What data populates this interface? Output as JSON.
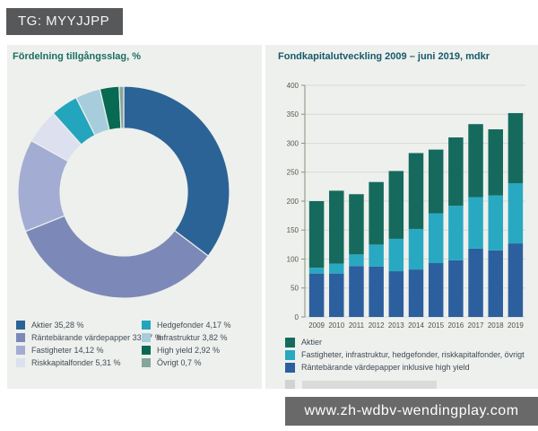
{
  "tag": {
    "label": "TG: MYYJJPP"
  },
  "watermark": {
    "text": "www.zh-wdbv-wendingplay.com"
  },
  "donut_panel": {
    "title": "Fördelning tillgångsslag, %",
    "legend_columns": [
      [
        {
          "text": "Aktier 35,28 %",
          "color": "#2b6396"
        },
        {
          "text": "Räntebärande värdepapper 33,67 %",
          "color": "#7c89b8"
        },
        {
          "text": "Fastigheter 14,12 %",
          "color": "#a3add3"
        },
        {
          "text": "Riskkapitalfonder 5,31 %",
          "color": "#dde0ee"
        }
      ],
      [
        {
          "text": "Hedgefonder 4,17 %",
          "color": "#23a5bd"
        },
        {
          "text": "Infrastruktur 3,82 %",
          "color": "#a7cddd"
        },
        {
          "text": "High yield 2,92 %",
          "color": "#086a52"
        },
        {
          "text": "Övrigt 0,7 %",
          "color": "#84a69b"
        }
      ]
    ]
  },
  "bar_panel": {
    "title": "Fondkapitalutveckling 2009 – juni 2019, mdkr",
    "legend": [
      {
        "text": "Aktier",
        "color": "#156a5d"
      },
      {
        "text": "Fastigheter, infrastruktur, hedgefonder, riskkapitalfonder, övrigt",
        "color": "#29a8c2"
      },
      {
        "text": "Räntebärande värdepapper inklusive high yield",
        "color": "#2c5f9e"
      }
    ]
  },
  "chart_data": [
    {
      "type": "pie",
      "donut": true,
      "title": "Fördelning tillgångsslag, %",
      "labels": [
        "Aktier",
        "Räntebärande värdepapper",
        "Fastigheter",
        "Riskkapitalfonder",
        "Hedgefonder",
        "Infrastruktur",
        "High yield",
        "Övrigt"
      ],
      "values": [
        35.28,
        33.67,
        14.12,
        5.31,
        4.17,
        3.82,
        2.92,
        0.7
      ],
      "colors": [
        "#2b6396",
        "#7c89b8",
        "#a3add3",
        "#dde0ee",
        "#23a5bd",
        "#a7cddd",
        "#086a52",
        "#84a69b"
      ],
      "start_angle_deg": 0,
      "direction": "clockwise",
      "legend_position": "bottom"
    },
    {
      "type": "bar",
      "stacked": true,
      "title": "Fondkapitalutveckling 2009 – juni 2019, mdkr",
      "categories": [
        "2009",
        "2010",
        "2011",
        "2012",
        "2013",
        "2014",
        "2015",
        "2016",
        "2017",
        "2018",
        "2019"
      ],
      "series": [
        {
          "name": "Räntebärande värdepapper inklusive high yield",
          "color": "#2c5f9e",
          "values": [
            75,
            75,
            88,
            87,
            79,
            82,
            93,
            98,
            118,
            115,
            127
          ]
        },
        {
          "name": "Fastigheter, infrastruktur, hedgefonder, riskkapitalfonder, övrigt",
          "color": "#29a8c2",
          "values": [
            10,
            17,
            20,
            38,
            56,
            70,
            86,
            94,
            89,
            95,
            104
          ]
        },
        {
          "name": "Aktier",
          "color": "#156a5d",
          "values": [
            115,
            126,
            104,
            108,
            117,
            131,
            110,
            118,
            126,
            114,
            121
          ]
        }
      ],
      "totals": [
        200,
        218,
        212,
        233,
        252,
        283,
        289,
        310,
        333,
        324,
        352
      ],
      "ylim": [
        0,
        400
      ],
      "ytick_step": 50,
      "grid": true,
      "legend_position": "bottom"
    }
  ]
}
